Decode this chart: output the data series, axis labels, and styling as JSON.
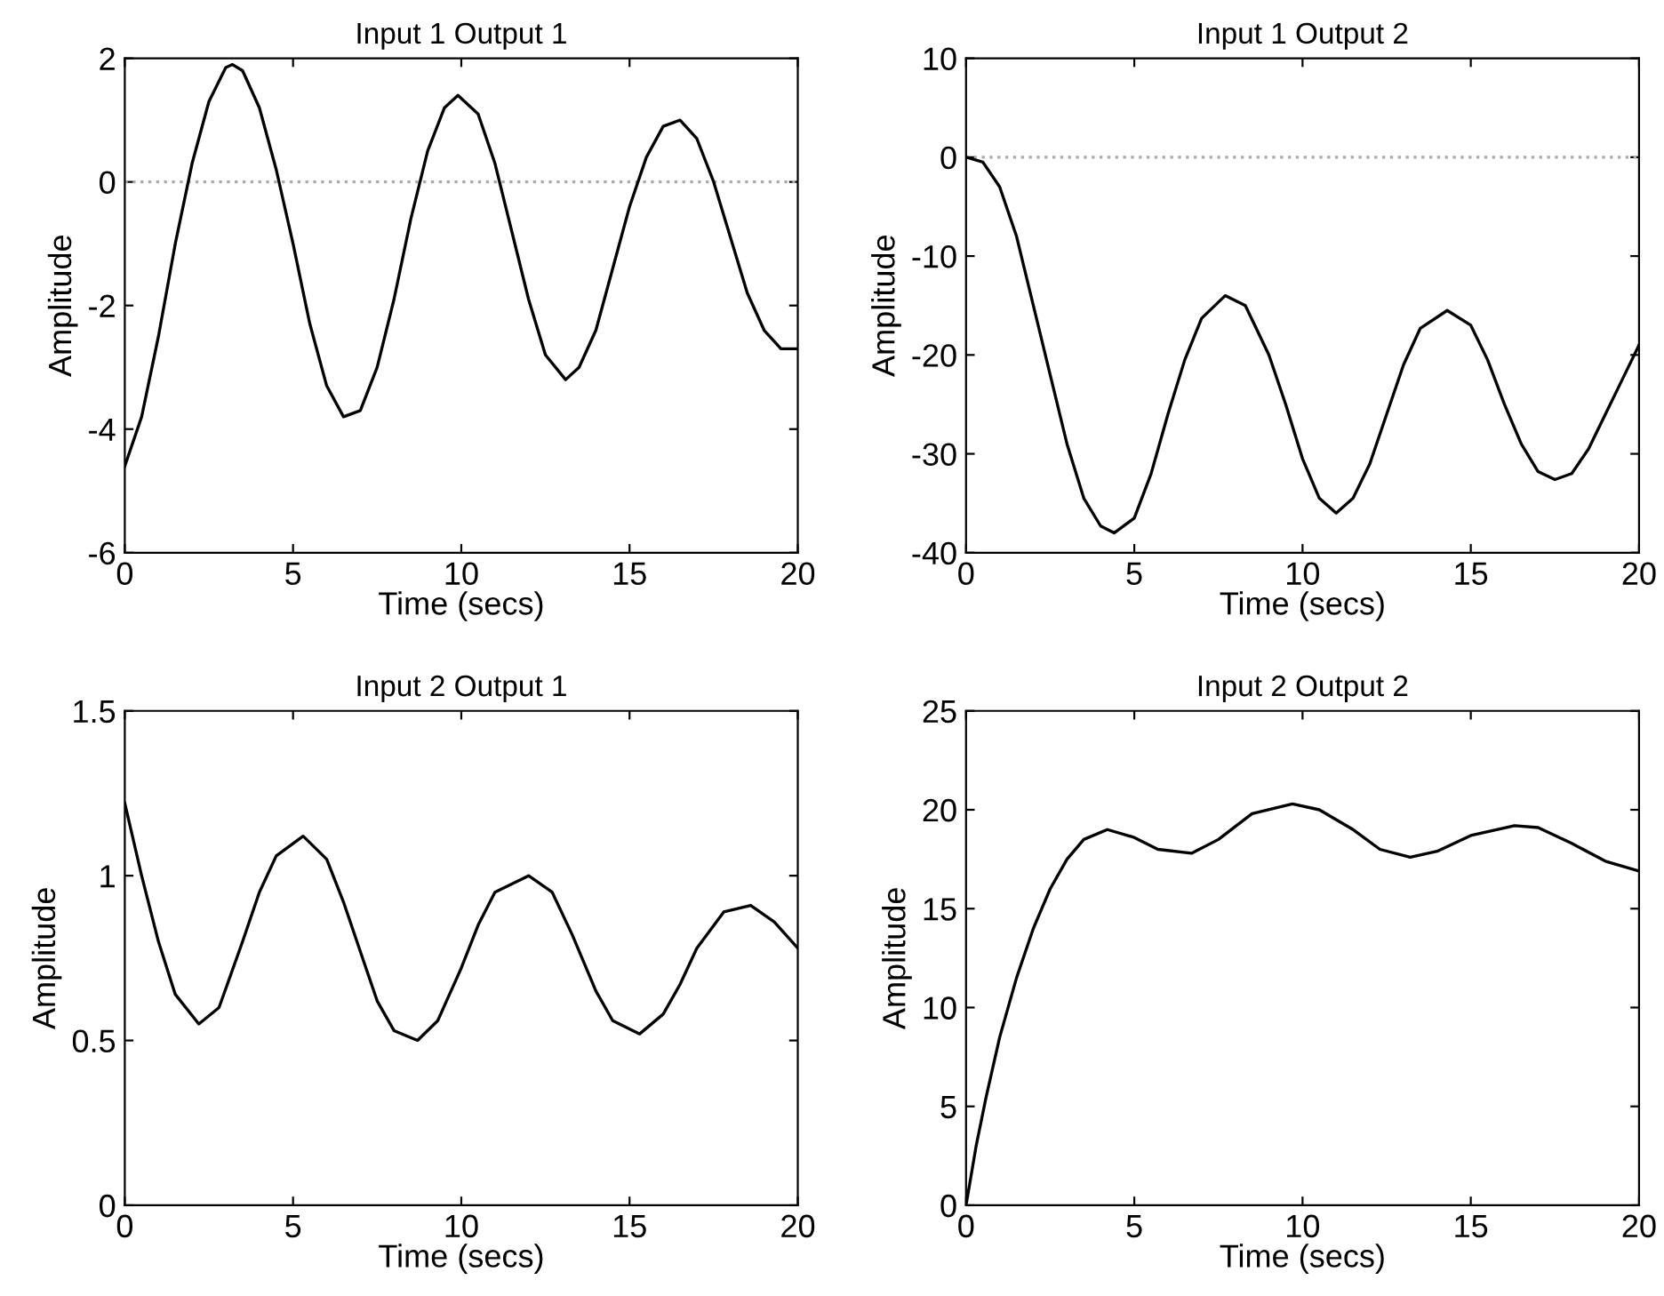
{
  "chart_data": [
    {
      "type": "line",
      "title": "Input 1 Output 1",
      "xlabel": "Time (secs)",
      "ylabel": "Amplitude",
      "xlim": [
        0,
        20
      ],
      "xticks": [
        0,
        5,
        10,
        15,
        20
      ],
      "ylim": [
        -6,
        2
      ],
      "yticks": [
        -6,
        -4,
        -2,
        0,
        2
      ],
      "grid": false,
      "ref_lines": [
        {
          "axis": "y",
          "value": 0,
          "label": null,
          "color": "#aaaaaa",
          "line_style": "dotted"
        }
      ],
      "series": [
        {
          "color": "#000000",
          "x": [
            0,
            0.5,
            1,
            1.5,
            2,
            2.5,
            3,
            3.2,
            3.5,
            4,
            4.5,
            5,
            5.5,
            6,
            6.5,
            7,
            7.5,
            8,
            8.5,
            9,
            9.5,
            9.9,
            10.5,
            11,
            11.5,
            12,
            12.5,
            13.1,
            13.5,
            14,
            14.5,
            15,
            15.5,
            16,
            16.5,
            17,
            17.5,
            18,
            18.5,
            19,
            19.5,
            20
          ],
          "values": [
            -4.6,
            -3.8,
            -2.5,
            -1.0,
            0.3,
            1.3,
            1.85,
            1.9,
            1.8,
            1.2,
            0.2,
            -1.0,
            -2.3,
            -3.3,
            -3.8,
            -3.7,
            -3.0,
            -1.9,
            -0.6,
            0.5,
            1.2,
            1.4,
            1.1,
            0.3,
            -0.8,
            -1.9,
            -2.8,
            -3.2,
            -3.0,
            -2.4,
            -1.4,
            -0.4,
            0.4,
            0.9,
            1.0,
            0.7,
            0.0,
            -0.9,
            -1.8,
            -2.4,
            -2.7,
            -2.7
          ]
        }
      ]
    },
    {
      "type": "line",
      "title": "Input 1 Output 2",
      "xlabel": "Time (secs)",
      "ylabel": "Amplitude",
      "xlim": [
        0,
        20
      ],
      "xticks": [
        0,
        5,
        10,
        15,
        20
      ],
      "ylim": [
        -40,
        10
      ],
      "yticks": [
        -40,
        -30,
        -20,
        -10,
        0,
        10
      ],
      "grid": false,
      "ref_lines": [
        {
          "axis": "y",
          "value": 0,
          "label": null,
          "color": "#aaaaaa",
          "line_style": "dotted"
        }
      ],
      "series": [
        {
          "color": "#000000",
          "x": [
            0,
            0.5,
            1,
            1.5,
            2,
            2.5,
            3,
            3.5,
            4,
            4.4,
            5,
            5.5,
            6,
            6.5,
            7,
            7.7,
            8.3,
            9,
            9.5,
            10,
            10.5,
            11,
            11.5,
            12,
            12.5,
            13,
            13.5,
            14.3,
            15,
            15.5,
            16,
            16.5,
            17,
            17.5,
            18,
            18.5,
            19,
            19.5,
            20
          ],
          "values": [
            0,
            -0.5,
            -3,
            -8,
            -15,
            -22,
            -29,
            -34.5,
            -37.3,
            -38,
            -36.5,
            -32,
            -26,
            -20.5,
            -16.3,
            -14,
            -15,
            -20,
            -25,
            -30.5,
            -34.5,
            -36,
            -34.5,
            -31,
            -26,
            -21,
            -17.3,
            -15.5,
            -17,
            -20.5,
            -25,
            -29,
            -31.8,
            -32.6,
            -32,
            -29.5,
            -26,
            -22.5,
            -19
          ]
        }
      ]
    },
    {
      "type": "line",
      "title": "Input 2 Output 1",
      "xlabel": "Time (secs)",
      "ylabel": "Amplitude",
      "xlim": [
        0,
        20
      ],
      "xticks": [
        0,
        5,
        10,
        15,
        20
      ],
      "ylim": [
        0,
        1.5
      ],
      "yticks": [
        0,
        0.5,
        1,
        1.5
      ],
      "grid": false,
      "series": [
        {
          "color": "#000000",
          "x": [
            0,
            0.5,
            1,
            1.5,
            2.2,
            2.8,
            3.5,
            4,
            4.5,
            5.3,
            6,
            6.5,
            7,
            7.5,
            8,
            8.7,
            9.3,
            10,
            10.5,
            11,
            12,
            12.7,
            13.3,
            14,
            14.5,
            15.3,
            16,
            16.5,
            17,
            17.8,
            18.6,
            19.3,
            20
          ],
          "values": [
            1.22,
            1.0,
            0.8,
            0.64,
            0.55,
            0.6,
            0.8,
            0.95,
            1.06,
            1.12,
            1.05,
            0.92,
            0.77,
            0.62,
            0.53,
            0.5,
            0.56,
            0.72,
            0.85,
            0.95,
            1.0,
            0.95,
            0.82,
            0.65,
            0.56,
            0.52,
            0.58,
            0.67,
            0.78,
            0.89,
            0.91,
            0.86,
            0.78
          ]
        }
      ]
    },
    {
      "type": "line",
      "title": "Input 2 Output 2",
      "xlabel": "Time (secs)",
      "ylabel": "Amplitude",
      "xlim": [
        0,
        20
      ],
      "xticks": [
        0,
        5,
        10,
        15,
        20
      ],
      "ylim": [
        0,
        25
      ],
      "yticks": [
        0,
        5,
        10,
        15,
        20,
        25
      ],
      "grid": false,
      "series": [
        {
          "color": "#000000",
          "x": [
            0,
            0.3,
            0.6,
            1,
            1.5,
            2,
            2.5,
            3,
            3.5,
            4.2,
            5,
            5.7,
            6.7,
            7.5,
            8.5,
            9.7,
            10.5,
            11.5,
            12.3,
            13.2,
            14,
            15,
            16.3,
            17,
            18,
            19,
            20
          ],
          "values": [
            0,
            3,
            5.5,
            8.5,
            11.5,
            14,
            16,
            17.5,
            18.5,
            19,
            18.6,
            18.0,
            17.8,
            18.5,
            19.8,
            20.3,
            20.0,
            19,
            18,
            17.6,
            17.9,
            18.7,
            19.2,
            19.1,
            18.3,
            17.4,
            16.9
          ]
        }
      ]
    }
  ]
}
